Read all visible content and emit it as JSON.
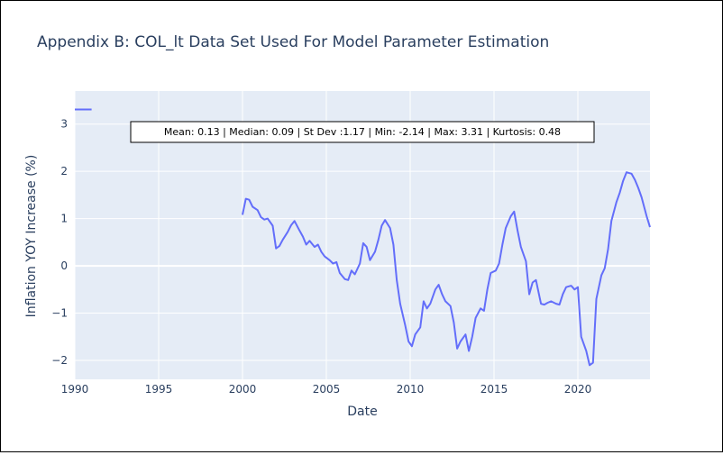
{
  "chart_data": {
    "type": "line",
    "title": "Appendix B: COL_lt Data Set Used For Model Parameter Estimation",
    "xlabel": "Date",
    "ylabel": "Inflation YOY Increase (%)",
    "xlim": [
      1990,
      2024.3
    ],
    "ylim": [
      -2.4,
      3.7
    ],
    "x_ticks": [
      1990,
      1995,
      2000,
      2005,
      2010,
      2015,
      2020
    ],
    "x_tick_labels": [
      "1990",
      "1995",
      "2000",
      "2005",
      "2010",
      "2015",
      "2020"
    ],
    "y_ticks": [
      -2,
      -1,
      0,
      1,
      2,
      3
    ],
    "y_tick_labels": [
      "−2",
      "−1",
      "0",
      "1",
      "2",
      "3"
    ],
    "grid": true,
    "colors": {
      "plot_bg": "#e5ecf6",
      "grid": "#ffffff",
      "line": "#636efa",
      "text": "#2a3f5f"
    },
    "annotation": "Mean: 0.13 | Median: 0.09 | St Dev :1.17 | Min: -2.14 | Max: 3.31 | Kurtosis: 0.48",
    "series": [
      {
        "x": [
          1990.0,
          1991.0
        ],
        "y": [
          3.31,
          3.31
        ]
      },
      {
        "x": [
          2000.0,
          2000.2,
          2000.4,
          2000.6,
          2000.9,
          2001.1,
          2001.3,
          2001.5,
          2001.8,
          2002.0,
          2002.2,
          2002.4,
          2002.7,
          2002.9,
          2003.1,
          2003.4,
          2003.6,
          2003.8,
          2004.0,
          2004.3,
          2004.5,
          2004.7,
          2004.9,
          2005.2,
          2005.4,
          2005.6,
          2005.8,
          2006.1,
          2006.3,
          2006.5,
          2006.7,
          2007.0,
          2007.2,
          2007.4,
          2007.6,
          2007.9,
          2008.1,
          2008.3,
          2008.5,
          2008.8,
          2009.0,
          2009.2,
          2009.4,
          2009.7,
          2009.9,
          2010.1,
          2010.3,
          2010.6,
          2010.8,
          2011.0,
          2011.2,
          2011.5,
          2011.7,
          2011.9,
          2012.1,
          2012.4,
          2012.6,
          2012.8,
          2013.0,
          2013.3,
          2013.5,
          2013.7,
          2013.9,
          2014.2,
          2014.4,
          2014.6,
          2014.8,
          2015.1,
          2015.3,
          2015.5,
          2015.7,
          2016.0,
          2016.2,
          2016.4,
          2016.6,
          2016.9,
          2017.1,
          2017.3,
          2017.5,
          2017.8,
          2018.0,
          2018.2,
          2018.4,
          2018.7,
          2018.9,
          2019.1,
          2019.3,
          2019.6,
          2019.8,
          2020.0,
          2020.2,
          2020.5,
          2020.7,
          2020.9,
          2021.1,
          2021.4,
          2021.6,
          2021.8,
          2022.0,
          2022.3,
          2022.5,
          2022.7,
          2022.9,
          2023.2,
          2023.4,
          2023.6,
          2023.8,
          2024.1,
          2024.3
        ],
        "y": [
          1.08,
          1.42,
          1.4,
          1.25,
          1.18,
          1.03,
          0.98,
          1.0,
          0.85,
          0.37,
          0.42,
          0.55,
          0.72,
          0.86,
          0.95,
          0.75,
          0.62,
          0.45,
          0.53,
          0.4,
          0.45,
          0.3,
          0.2,
          0.12,
          0.05,
          0.08,
          -0.15,
          -0.28,
          -0.3,
          -0.1,
          -0.18,
          0.05,
          0.48,
          0.4,
          0.12,
          0.3,
          0.55,
          0.85,
          0.97,
          0.8,
          0.45,
          -0.3,
          -0.8,
          -1.25,
          -1.6,
          -1.7,
          -1.45,
          -1.3,
          -0.75,
          -0.9,
          -0.8,
          -0.5,
          -0.4,
          -0.6,
          -0.75,
          -0.85,
          -1.2,
          -1.75,
          -1.6,
          -1.45,
          -1.8,
          -1.5,
          -1.1,
          -0.9,
          -0.95,
          -0.5,
          -0.15,
          -0.1,
          0.05,
          0.45,
          0.8,
          1.05,
          1.15,
          0.75,
          0.4,
          0.1,
          -0.6,
          -0.35,
          -0.3,
          -0.8,
          -0.82,
          -0.78,
          -0.75,
          -0.8,
          -0.82,
          -0.6,
          -0.45,
          -0.42,
          -0.5,
          -0.45,
          -1.5,
          -1.8,
          -2.1,
          -2.05,
          -0.7,
          -0.2,
          -0.05,
          0.35,
          0.95,
          1.35,
          1.55,
          1.8,
          1.98,
          1.95,
          1.82,
          1.65,
          1.45,
          1.05,
          0.82
        ]
      }
    ]
  }
}
